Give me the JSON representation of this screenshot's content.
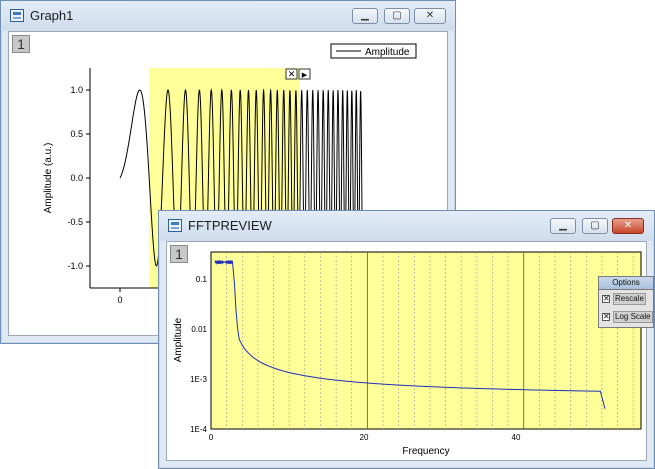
{
  "graph1": {
    "title": "Graph1",
    "page_number": "1",
    "legend_label": "Amplitude",
    "y_axis_label": "Amplitude (a.u.)",
    "y_ticks": [
      "1.0",
      "0.5",
      "0.0",
      "-0.5",
      "-1.0"
    ],
    "x_ticks": [
      "0"
    ]
  },
  "fftpreview": {
    "title": "FFTPREVIEW",
    "page_number": "1",
    "y_axis_label": "Amplitude",
    "x_axis_label": "Frequency",
    "y_ticks": [
      "0.1",
      "0.01",
      "1E-3",
      "1E-4"
    ],
    "x_ticks": [
      "0",
      "20",
      "40"
    ],
    "options": {
      "header": "Options",
      "rescale_label": "Rescale",
      "rescale_checked": true,
      "log_scale_label": "Log Scale",
      "log_scale_checked": true
    }
  },
  "colors": {
    "plot_fill": "#ffff99",
    "fft_line": "#1f2fb8",
    "signal_line": "#000000"
  },
  "chart_data": [
    {
      "type": "line",
      "title": "",
      "series": [
        {
          "name": "Amplitude"
        }
      ],
      "ylabel": "Amplitude (a.u.)",
      "ylim": [
        -1.2,
        1.2
      ],
      "description_points": {
        "signal": "chirp",
        "x": [
          0,
          0.25,
          0.5,
          0.75,
          1.0,
          1.5,
          2.0,
          2.5,
          3.0
        ],
        "y": [
          0,
          1.0,
          0,
          -1.0,
          0,
          1.0,
          -1.0,
          1.0,
          -1.0
        ]
      }
    },
    {
      "type": "line",
      "xlabel": "Frequency",
      "ylabel": "Amplitude",
      "log_y": true,
      "xlim": [
        0,
        55
      ],
      "ylim": [
        0.0001,
        0.3
      ],
      "series": [
        {
          "x": [
            0.5,
            1,
            2,
            2.8,
            3,
            4,
            6,
            10,
            15,
            20,
            30,
            40,
            50,
            50.5
          ],
          "y": [
            0.18,
            0.2,
            0.2,
            0.19,
            0.05,
            0.006,
            0.0022,
            0.0012,
            0.00095,
            0.00078,
            0.00062,
            0.0005,
            0.00045,
            0.00025
          ]
        }
      ]
    }
  ]
}
